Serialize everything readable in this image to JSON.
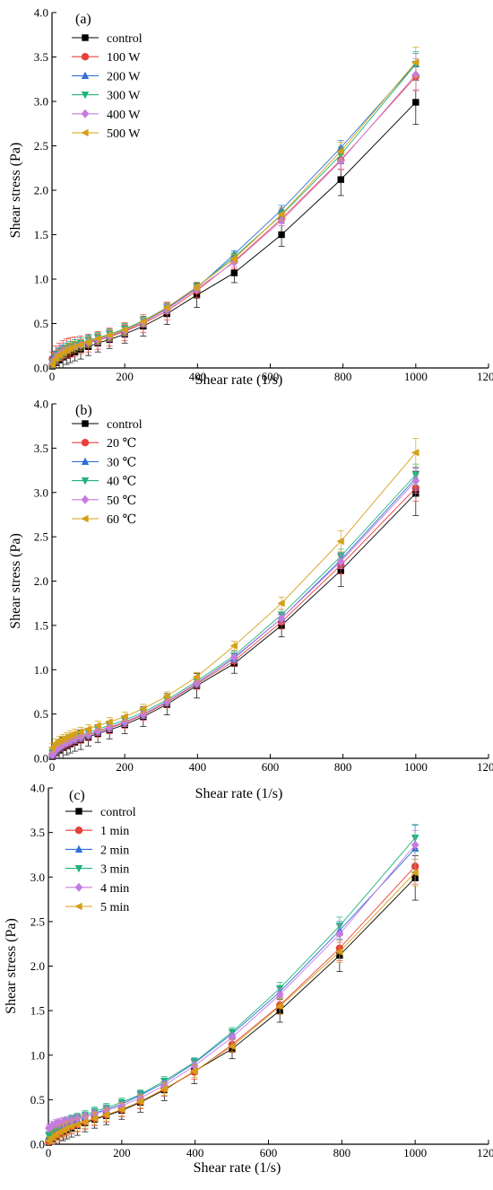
{
  "colors": {
    "control": "#000000",
    "s1": "#e8403a",
    "s2": "#2f6fd6",
    "s3": "#1fb37a",
    "s4": "#c77be0",
    "s5": "#d4a017"
  },
  "markers": [
    "square",
    "circle",
    "triangle-up",
    "triangle-down",
    "diamond",
    "triangle-left"
  ],
  "chart_data": [
    {
      "type": "line",
      "panel": "(a)",
      "xlabel": "Shear rate (1/s)",
      "ylabel": "Shear stress (Pa)",
      "xlim": [
        0,
        1200
      ],
      "ylim": [
        0,
        4.0
      ],
      "xticks": [
        0,
        200,
        400,
        600,
        800,
        1000,
        1200
      ],
      "yticks": [
        0.0,
        0.5,
        1.0,
        1.5,
        2.0,
        2.5,
        3.0,
        3.5,
        4.0
      ],
      "x": [
        1,
        10,
        20,
        30,
        40,
        50,
        63,
        79,
        100,
        126,
        158,
        200,
        251,
        316,
        398,
        501,
        631,
        794,
        1000
      ],
      "series": [
        {
          "name": "control",
          "values": [
            0.02,
            0.06,
            0.09,
            0.12,
            0.14,
            0.16,
            0.18,
            0.21,
            0.24,
            0.28,
            0.32,
            0.38,
            0.47,
            0.61,
            0.82,
            1.07,
            1.5,
            2.12,
            2.99
          ],
          "errors": [
            0.02,
            0.06,
            0.09,
            0.12,
            0.1,
            0.1,
            0.1,
            0.11,
            0.1,
            0.1,
            0.1,
            0.1,
            0.11,
            0.12,
            0.14,
            0.11,
            0.13,
            0.18,
            0.25
          ]
        },
        {
          "name": "100 W",
          "values": [
            0.1,
            0.15,
            0.18,
            0.2,
            0.22,
            0.23,
            0.24,
            0.26,
            0.28,
            0.31,
            0.35,
            0.41,
            0.5,
            0.64,
            0.87,
            1.2,
            1.68,
            2.34,
            3.28
          ],
          "errors": [
            0.08,
            0.1,
            0.1,
            0.11,
            0.11,
            0.11,
            0.11,
            0.1,
            0.1,
            0.1,
            0.1,
            0.1,
            0.1,
            0.1,
            0.08,
            0.08,
            0.08,
            0.1,
            0.15
          ]
        },
        {
          "name": "200 W",
          "values": [
            0.08,
            0.13,
            0.17,
            0.2,
            0.22,
            0.24,
            0.26,
            0.28,
            0.3,
            0.33,
            0.37,
            0.43,
            0.52,
            0.67,
            0.9,
            1.28,
            1.78,
            2.48,
            3.42
          ],
          "errors": [
            0.05,
            0.06,
            0.06,
            0.06,
            0.06,
            0.06,
            0.06,
            0.06,
            0.06,
            0.06,
            0.06,
            0.06,
            0.05,
            0.05,
            0.04,
            0.04,
            0.05,
            0.08,
            0.12
          ]
        },
        {
          "name": "300 W",
          "values": [
            0.06,
            0.12,
            0.16,
            0.19,
            0.22,
            0.24,
            0.26,
            0.28,
            0.31,
            0.34,
            0.38,
            0.44,
            0.53,
            0.68,
            0.91,
            1.25,
            1.72,
            2.4,
            3.42
          ],
          "errors": [
            0.05,
            0.06,
            0.06,
            0.06,
            0.06,
            0.06,
            0.06,
            0.06,
            0.06,
            0.06,
            0.06,
            0.06,
            0.05,
            0.05,
            0.04,
            0.05,
            0.06,
            0.09,
            0.14
          ]
        },
        {
          "name": "400 W",
          "values": [
            0.05,
            0.11,
            0.15,
            0.18,
            0.2,
            0.22,
            0.24,
            0.26,
            0.29,
            0.32,
            0.36,
            0.42,
            0.51,
            0.66,
            0.89,
            1.19,
            1.66,
            2.33,
            3.3
          ],
          "errors": [
            0.05,
            0.06,
            0.06,
            0.06,
            0.06,
            0.06,
            0.06,
            0.06,
            0.06,
            0.06,
            0.06,
            0.06,
            0.05,
            0.05,
            0.04,
            0.05,
            0.06,
            0.1,
            0.18
          ]
        },
        {
          "name": "500 W",
          "values": [
            0.04,
            0.1,
            0.14,
            0.17,
            0.2,
            0.22,
            0.24,
            0.26,
            0.29,
            0.33,
            0.37,
            0.43,
            0.52,
            0.68,
            0.91,
            1.23,
            1.73,
            2.44,
            3.44
          ],
          "errors": [
            0.05,
            0.06,
            0.06,
            0.06,
            0.06,
            0.06,
            0.06,
            0.06,
            0.06,
            0.06,
            0.06,
            0.06,
            0.05,
            0.05,
            0.04,
            0.05,
            0.07,
            0.1,
            0.17
          ]
        }
      ]
    },
    {
      "type": "line",
      "panel": "(b)",
      "xlabel": "Shear rate (1/s)",
      "ylabel": "Shear stress (Pa)",
      "xlim": [
        0,
        1200
      ],
      "ylim": [
        0,
        4.0
      ],
      "xticks": [
        0,
        200,
        400,
        600,
        800,
        1000,
        1200
      ],
      "yticks": [
        0.0,
        0.5,
        1.0,
        1.5,
        2.0,
        2.5,
        3.0,
        3.5,
        4.0
      ],
      "x": [
        1,
        10,
        20,
        30,
        40,
        50,
        63,
        79,
        100,
        126,
        158,
        200,
        251,
        316,
        398,
        501,
        631,
        794,
        1000
      ],
      "series": [
        {
          "name": "control",
          "values": [
            0.02,
            0.06,
            0.09,
            0.12,
            0.14,
            0.16,
            0.18,
            0.21,
            0.24,
            0.28,
            0.32,
            0.38,
            0.47,
            0.61,
            0.82,
            1.07,
            1.5,
            2.12,
            2.99
          ],
          "errors": [
            0.02,
            0.06,
            0.09,
            0.12,
            0.1,
            0.1,
            0.1,
            0.11,
            0.1,
            0.1,
            0.1,
            0.1,
            0.11,
            0.12,
            0.14,
            0.11,
            0.13,
            0.18,
            0.25
          ]
        },
        {
          "name": "20 ℃",
          "values": [
            0.04,
            0.09,
            0.12,
            0.15,
            0.17,
            0.19,
            0.21,
            0.23,
            0.26,
            0.3,
            0.34,
            0.4,
            0.49,
            0.63,
            0.84,
            1.1,
            1.54,
            2.18,
            3.05
          ],
          "errors": [
            0.04,
            0.06,
            0.06,
            0.06,
            0.06,
            0.06,
            0.06,
            0.06,
            0.06,
            0.06,
            0.06,
            0.06,
            0.06,
            0.06,
            0.06,
            0.06,
            0.08,
            0.1,
            0.15
          ]
        },
        {
          "name": "30 ℃",
          "values": [
            0.05,
            0.1,
            0.13,
            0.16,
            0.18,
            0.2,
            0.22,
            0.24,
            0.27,
            0.31,
            0.35,
            0.41,
            0.5,
            0.64,
            0.85,
            1.13,
            1.58,
            2.24,
            3.16
          ],
          "errors": [
            0.04,
            0.05,
            0.05,
            0.05,
            0.05,
            0.05,
            0.05,
            0.05,
            0.05,
            0.05,
            0.05,
            0.05,
            0.05,
            0.05,
            0.05,
            0.05,
            0.06,
            0.08,
            0.12
          ]
        },
        {
          "name": "40 ℃",
          "values": [
            0.06,
            0.11,
            0.15,
            0.18,
            0.2,
            0.22,
            0.24,
            0.26,
            0.29,
            0.33,
            0.37,
            0.43,
            0.52,
            0.66,
            0.87,
            1.16,
            1.62,
            2.28,
            3.2
          ],
          "errors": [
            0.04,
            0.05,
            0.05,
            0.05,
            0.05,
            0.05,
            0.05,
            0.05,
            0.05,
            0.05,
            0.05,
            0.05,
            0.05,
            0.05,
            0.05,
            0.05,
            0.06,
            0.08,
            0.12
          ]
        },
        {
          "name": "50 ℃",
          "values": [
            0.04,
            0.09,
            0.13,
            0.16,
            0.18,
            0.2,
            0.22,
            0.24,
            0.27,
            0.31,
            0.35,
            0.41,
            0.5,
            0.64,
            0.85,
            1.14,
            1.58,
            2.22,
            3.13
          ],
          "errors": [
            0.04,
            0.05,
            0.05,
            0.05,
            0.05,
            0.05,
            0.05,
            0.05,
            0.05,
            0.05,
            0.05,
            0.05,
            0.05,
            0.05,
            0.05,
            0.05,
            0.06,
            0.08,
            0.14
          ]
        },
        {
          "name": "60 ℃",
          "values": [
            0.12,
            0.17,
            0.2,
            0.22,
            0.24,
            0.26,
            0.28,
            0.3,
            0.33,
            0.37,
            0.41,
            0.47,
            0.56,
            0.7,
            0.92,
            1.27,
            1.75,
            2.45,
            3.45
          ],
          "errors": [
            0.05,
            0.05,
            0.05,
            0.05,
            0.05,
            0.05,
            0.05,
            0.05,
            0.05,
            0.05,
            0.05,
            0.05,
            0.05,
            0.05,
            0.05,
            0.05,
            0.07,
            0.12,
            0.16
          ]
        }
      ]
    },
    {
      "type": "line",
      "panel": "(c)",
      "xlabel": "Shear rate (1/s)",
      "ylabel": "Shear stress (Pa)",
      "xlim": [
        0,
        1200
      ],
      "ylim": [
        0,
        4.0
      ],
      "xticks": [
        0,
        200,
        400,
        600,
        800,
        1000,
        1200
      ],
      "yticks": [
        0.0,
        0.5,
        1.0,
        1.5,
        2.0,
        2.5,
        3.0,
        3.5,
        4.0
      ],
      "x": [
        1,
        10,
        20,
        30,
        40,
        50,
        63,
        79,
        100,
        126,
        158,
        200,
        251,
        316,
        398,
        501,
        631,
        794,
        1000
      ],
      "series": [
        {
          "name": "control",
          "values": [
            0.02,
            0.06,
            0.09,
            0.12,
            0.14,
            0.16,
            0.18,
            0.21,
            0.24,
            0.28,
            0.32,
            0.38,
            0.47,
            0.61,
            0.82,
            1.07,
            1.5,
            2.12,
            2.99
          ],
          "errors": [
            0.02,
            0.06,
            0.09,
            0.12,
            0.1,
            0.1,
            0.1,
            0.11,
            0.1,
            0.1,
            0.1,
            0.1,
            0.11,
            0.12,
            0.14,
            0.11,
            0.13,
            0.18,
            0.25
          ]
        },
        {
          "name": "1 min",
          "values": [
            0.03,
            0.07,
            0.1,
            0.13,
            0.16,
            0.18,
            0.2,
            0.22,
            0.25,
            0.29,
            0.33,
            0.39,
            0.48,
            0.62,
            0.81,
            1.12,
            1.56,
            2.2,
            3.12
          ],
          "errors": [
            0.04,
            0.07,
            0.08,
            0.08,
            0.08,
            0.08,
            0.08,
            0.08,
            0.08,
            0.08,
            0.08,
            0.08,
            0.08,
            0.08,
            0.08,
            0.08,
            0.1,
            0.14,
            0.2
          ]
        },
        {
          "name": "2 min",
          "values": [
            0.08,
            0.13,
            0.17,
            0.2,
            0.22,
            0.24,
            0.26,
            0.28,
            0.31,
            0.35,
            0.39,
            0.45,
            0.55,
            0.69,
            0.91,
            1.24,
            1.71,
            2.4,
            3.32
          ],
          "errors": [
            0.04,
            0.05,
            0.05,
            0.05,
            0.05,
            0.05,
            0.05,
            0.05,
            0.05,
            0.05,
            0.05,
            0.05,
            0.05,
            0.05,
            0.05,
            0.05,
            0.06,
            0.1,
            0.26
          ]
        },
        {
          "name": "3 min",
          "values": [
            0.1,
            0.15,
            0.19,
            0.22,
            0.24,
            0.26,
            0.28,
            0.3,
            0.33,
            0.37,
            0.41,
            0.47,
            0.56,
            0.71,
            0.92,
            1.26,
            1.75,
            2.45,
            3.44
          ],
          "errors": [
            0.04,
            0.05,
            0.05,
            0.05,
            0.05,
            0.05,
            0.05,
            0.05,
            0.05,
            0.05,
            0.05,
            0.05,
            0.05,
            0.05,
            0.05,
            0.05,
            0.07,
            0.1,
            0.15
          ]
        },
        {
          "name": "4 min",
          "values": [
            0.18,
            0.21,
            0.23,
            0.24,
            0.25,
            0.26,
            0.27,
            0.29,
            0.31,
            0.34,
            0.38,
            0.43,
            0.52,
            0.66,
            0.88,
            1.2,
            1.68,
            2.36,
            3.36
          ],
          "errors": [
            0.04,
            0.05,
            0.05,
            0.05,
            0.05,
            0.05,
            0.05,
            0.05,
            0.05,
            0.05,
            0.05,
            0.05,
            0.05,
            0.05,
            0.05,
            0.05,
            0.07,
            0.1,
            0.16
          ]
        },
        {
          "name": "5 min",
          "values": [
            0.04,
            0.08,
            0.11,
            0.14,
            0.16,
            0.18,
            0.2,
            0.22,
            0.25,
            0.29,
            0.33,
            0.39,
            0.48,
            0.62,
            0.82,
            1.1,
            1.55,
            2.16,
            3.05
          ],
          "errors": [
            0.04,
            0.06,
            0.07,
            0.07,
            0.07,
            0.07,
            0.07,
            0.07,
            0.07,
            0.07,
            0.07,
            0.07,
            0.07,
            0.07,
            0.07,
            0.07,
            0.09,
            0.12,
            0.15
          ]
        }
      ]
    }
  ]
}
